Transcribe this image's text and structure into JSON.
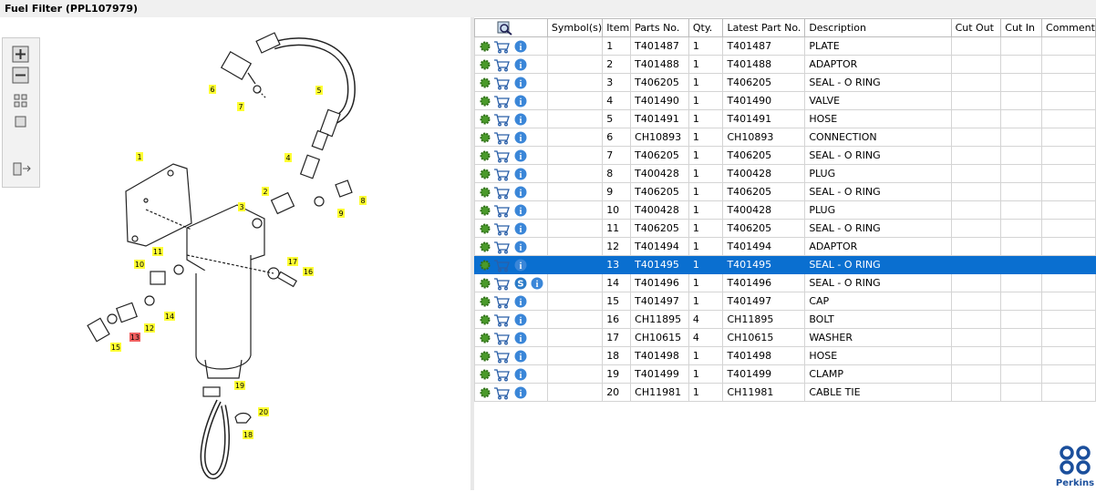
{
  "header": {
    "title": "Fuel Filter (PPL107979)"
  },
  "diagram": {
    "callouts": [
      "1",
      "2",
      "3",
      "4",
      "5",
      "6",
      "7",
      "8",
      "9",
      "10",
      "11",
      "12",
      "13",
      "14",
      "15",
      "16",
      "17",
      "18",
      "19",
      "20"
    ],
    "highlighted": "13"
  },
  "table": {
    "columns": [
      "Symbol(s)",
      "Item",
      "Parts No.",
      "Qty.",
      "Latest Part No.",
      "Description",
      "Cut Out",
      "Cut In",
      "Comment"
    ],
    "rows": [
      {
        "item": "1",
        "part_no": "T401487",
        "qty": "1",
        "latest": "T401487",
        "description": "PLATE"
      },
      {
        "item": "2",
        "part_no": "T401488",
        "qty": "1",
        "latest": "T401488",
        "description": "ADAPTOR"
      },
      {
        "item": "3",
        "part_no": "T406205",
        "qty": "1",
        "latest": "T406205",
        "description": "SEAL - O RING"
      },
      {
        "item": "4",
        "part_no": "T401490",
        "qty": "1",
        "latest": "T401490",
        "description": "VALVE"
      },
      {
        "item": "5",
        "part_no": "T401491",
        "qty": "1",
        "latest": "T401491",
        "description": "HOSE"
      },
      {
        "item": "6",
        "part_no": "CH10893",
        "qty": "1",
        "latest": "CH10893",
        "description": "CONNECTION"
      },
      {
        "item": "7",
        "part_no": "T406205",
        "qty": "1",
        "latest": "T406205",
        "description": "SEAL - O RING"
      },
      {
        "item": "8",
        "part_no": "T400428",
        "qty": "1",
        "latest": "T400428",
        "description": "PLUG"
      },
      {
        "item": "9",
        "part_no": "T406205",
        "qty": "1",
        "latest": "T406205",
        "description": "SEAL - O RING"
      },
      {
        "item": "10",
        "part_no": "T400428",
        "qty": "1",
        "latest": "T400428",
        "description": "PLUG"
      },
      {
        "item": "11",
        "part_no": "T406205",
        "qty": "1",
        "latest": "T406205",
        "description": "SEAL - O RING"
      },
      {
        "item": "12",
        "part_no": "T401494",
        "qty": "1",
        "latest": "T401494",
        "description": "ADAPTOR"
      },
      {
        "item": "13",
        "part_no": "T401495",
        "qty": "1",
        "latest": "T401495",
        "description": "SEAL - O RING",
        "selected": true
      },
      {
        "item": "14",
        "part_no": "T401496",
        "qty": "1",
        "latest": "T401496",
        "description": "SEAL - O RING",
        "symbol": "S"
      },
      {
        "item": "15",
        "part_no": "T401497",
        "qty": "1",
        "latest": "T401497",
        "description": "CAP"
      },
      {
        "item": "16",
        "part_no": "CH11895",
        "qty": "4",
        "latest": "CH11895",
        "description": "BOLT"
      },
      {
        "item": "17",
        "part_no": "CH10615",
        "qty": "4",
        "latest": "CH10615",
        "description": "WASHER"
      },
      {
        "item": "18",
        "part_no": "T401498",
        "qty": "1",
        "latest": "T401498",
        "description": "HOSE"
      },
      {
        "item": "19",
        "part_no": "T401499",
        "qty": "1",
        "latest": "T401499",
        "description": "CLAMP"
      },
      {
        "item": "20",
        "part_no": "CH11981",
        "qty": "1",
        "latest": "CH11981",
        "description": "CABLE TIE"
      }
    ]
  },
  "brand": "Perkins"
}
